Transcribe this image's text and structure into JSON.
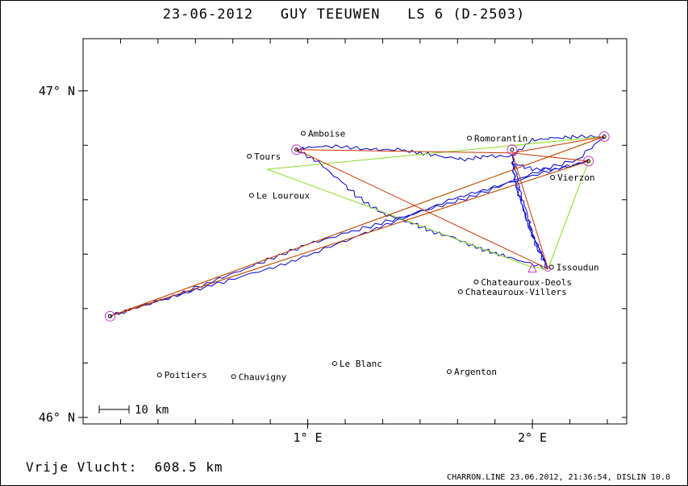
{
  "title": "23-06-2012   GUY TEEUWEN   LS 6 (D-2503)",
  "footer": {
    "distance": "Vrije Vlucht:  608.5 km",
    "credit": "CHARRON.LINE 23.06.2012, 21:36:54, DISLIN 10.0"
  },
  "scale_bar": {
    "label": "10 km"
  },
  "axes": {
    "y_ticks": [
      {
        "label": "47° N",
        "value": 47.0
      },
      {
        "label": "46° N",
        "value": 46.0
      }
    ],
    "x_ticks": [
      {
        "label": "1° E",
        "value": 1.0
      },
      {
        "label": "2° E",
        "value": 2.0
      }
    ],
    "x_range": [
      -0.0,
      2.42
    ],
    "y_range": [
      45.98,
      47.16
    ]
  },
  "colors": {
    "track": "#0000cc",
    "task": "#cc3300",
    "optimized": "#88dd22",
    "turnpoint": "#cc33cc"
  },
  "places": [
    {
      "name": "Amboise",
      "lon": 0.98,
      "lat": 46.87
    },
    {
      "name": "Romorantin",
      "lon": 1.72,
      "lat": 46.855
    },
    {
      "name": "Tours",
      "lon": 0.74,
      "lat": 46.8
    },
    {
      "name": "Le Louroux",
      "lon": 0.75,
      "lat": 46.68
    },
    {
      "name": "Vierzon",
      "lon": 2.09,
      "lat": 46.735
    },
    {
      "name": "Issoudun",
      "lon": 2.085,
      "lat": 46.46
    },
    {
      "name": "Chateauroux-Deols",
      "lon": 1.75,
      "lat": 46.415
    },
    {
      "name": "Chateauroux-Villers",
      "lon": 1.68,
      "lat": 46.385
    },
    {
      "name": "Poitiers",
      "lon": 0.34,
      "lat": 46.13
    },
    {
      "name": "Chauvigny",
      "lon": 0.67,
      "lat": 46.125
    },
    {
      "name": "Le Blanc",
      "lon": 1.12,
      "lat": 46.165
    },
    {
      "name": "Argenton",
      "lon": 1.63,
      "lat": 46.14
    }
  ],
  "turnpoints": [
    {
      "lon": 0.95,
      "lat": 46.82
    },
    {
      "lon": 1.91,
      "lat": 46.82
    },
    {
      "lon": 2.32,
      "lat": 46.86
    },
    {
      "lon": 2.25,
      "lat": 46.785
    },
    {
      "lon": 0.12,
      "lat": 46.31
    }
  ],
  "start_finish": {
    "lon": 2.07,
    "lat": 46.455
  },
  "start_triangle": {
    "lon": 2.0,
    "lat": 46.455
  },
  "task_path": [
    [
      2.07,
      46.455
    ],
    [
      0.95,
      46.82
    ],
    [
      1.91,
      46.81
    ],
    [
      2.32,
      46.86
    ],
    [
      0.12,
      46.31
    ],
    [
      2.25,
      46.785
    ],
    [
      1.91,
      46.81
    ],
    [
      2.07,
      46.455
    ]
  ],
  "optimized_path": [
    [
      2.0,
      46.46
    ],
    [
      0.82,
      46.76
    ],
    [
      2.32,
      46.86
    ],
    [
      0.12,
      46.31
    ],
    [
      2.25,
      46.785
    ],
    [
      2.07,
      46.455
    ],
    [
      2.0,
      46.46
    ]
  ],
  "track_path": [
    [
      2.07,
      46.455
    ],
    [
      2.04,
      46.5
    ],
    [
      2.0,
      46.56
    ],
    [
      1.98,
      46.62
    ],
    [
      1.95,
      46.68
    ],
    [
      1.93,
      46.74
    ],
    [
      1.91,
      46.8
    ],
    [
      1.8,
      46.8
    ],
    [
      1.7,
      46.79
    ],
    [
      1.6,
      46.8
    ],
    [
      1.5,
      46.81
    ],
    [
      1.4,
      46.82
    ],
    [
      1.28,
      46.82
    ],
    [
      1.15,
      46.83
    ],
    [
      1.02,
      46.83
    ],
    [
      0.95,
      46.82
    ],
    [
      1.05,
      46.78
    ],
    [
      1.15,
      46.72
    ],
    [
      1.25,
      46.66
    ],
    [
      1.35,
      46.62
    ],
    [
      1.45,
      46.6
    ],
    [
      1.55,
      46.57
    ],
    [
      1.65,
      46.55
    ],
    [
      1.75,
      46.52
    ],
    [
      1.85,
      46.5
    ],
    [
      1.95,
      46.48
    ],
    [
      2.07,
      46.455
    ],
    [
      2.02,
      46.52
    ],
    [
      1.98,
      46.59
    ],
    [
      1.95,
      46.66
    ],
    [
      1.92,
      46.73
    ],
    [
      1.91,
      46.8
    ],
    [
      2.0,
      46.85
    ],
    [
      2.1,
      46.855
    ],
    [
      2.2,
      46.86
    ],
    [
      2.32,
      46.86
    ],
    [
      2.2,
      46.79
    ],
    [
      2.05,
      46.76
    ],
    [
      1.9,
      46.72
    ],
    [
      1.75,
      46.68
    ],
    [
      1.6,
      46.65
    ],
    [
      1.45,
      46.62
    ],
    [
      1.3,
      46.59
    ],
    [
      1.15,
      46.56
    ],
    [
      1.0,
      46.53
    ],
    [
      0.85,
      46.49
    ],
    [
      0.7,
      46.45
    ],
    [
      0.55,
      46.41
    ],
    [
      0.4,
      46.37
    ],
    [
      0.25,
      46.34
    ],
    [
      0.12,
      46.31
    ],
    [
      0.3,
      46.35
    ],
    [
      0.45,
      46.38
    ],
    [
      0.6,
      46.41
    ],
    [
      0.75,
      46.44
    ],
    [
      0.9,
      46.47
    ],
    [
      1.05,
      46.51
    ],
    [
      1.2,
      46.55
    ],
    [
      1.35,
      46.59
    ],
    [
      1.5,
      46.63
    ],
    [
      1.65,
      46.67
    ],
    [
      1.8,
      46.7
    ],
    [
      1.95,
      46.73
    ],
    [
      2.1,
      46.76
    ],
    [
      2.25,
      46.785
    ],
    [
      2.12,
      46.76
    ],
    [
      2.0,
      46.76
    ],
    [
      1.91,
      46.78
    ],
    [
      1.93,
      46.7
    ],
    [
      1.97,
      46.62
    ],
    [
      2.01,
      46.55
    ],
    [
      2.05,
      46.49
    ],
    [
      2.07,
      46.455
    ]
  ]
}
